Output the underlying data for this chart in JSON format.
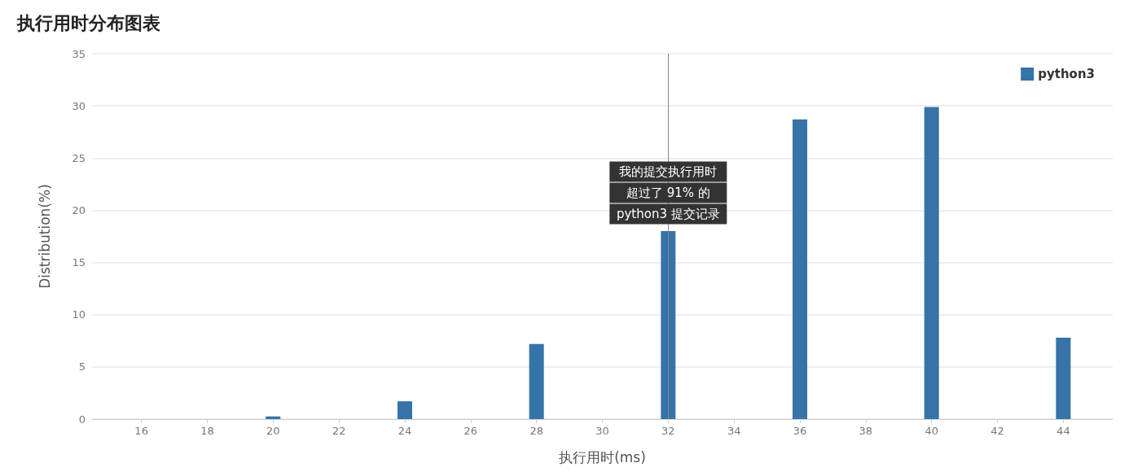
{
  "chart_data": {
    "type": "bar",
    "title": "执行用时分布图表",
    "xlabel": "执行用时(ms)",
    "ylabel": "Distribution(%)",
    "x": [
      20,
      24,
      28,
      32,
      36,
      40,
      44
    ],
    "series": [
      {
        "name": "python3",
        "color": "#3573a8",
        "values": [
          0.25,
          1.7,
          7.2,
          18,
          28.7,
          29.9,
          7.8
        ]
      }
    ],
    "xlim": [
      14.5,
      45.5
    ],
    "xticks": [
      16,
      18,
      20,
      22,
      24,
      26,
      28,
      30,
      32,
      34,
      36,
      38,
      40,
      42,
      44
    ],
    "ylim": [
      0,
      35
    ],
    "yticks": [
      0,
      5,
      10,
      15,
      20,
      25,
      30,
      35
    ],
    "ref_lines": [
      {
        "axis": "x",
        "value": 32,
        "color": "#888888"
      }
    ],
    "annotations": [
      "我的提交执行用时",
      "超过了 91% 的",
      "python3 提交记录"
    ],
    "grid": "y",
    "legend": "top right"
  }
}
